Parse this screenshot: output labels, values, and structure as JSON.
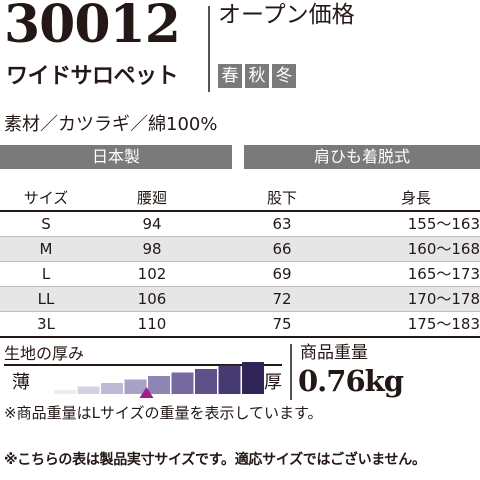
{
  "header": {
    "model_number": "30012",
    "product_name": "ワイドサロペット",
    "price_label": "オープン価格",
    "seasons": [
      "春",
      "秋",
      "冬"
    ]
  },
  "material": "素材／カツラギ／綿100%",
  "tags": {
    "origin": "日本製",
    "feature": "肩ひも着脱式"
  },
  "size_table": {
    "headers": [
      "サイズ",
      "腰廻",
      "股下",
      "身長"
    ],
    "rows": [
      [
        "S",
        "94",
        "63",
        "155〜163"
      ],
      [
        "M",
        "98",
        "66",
        "160〜168"
      ],
      [
        "L",
        "102",
        "69",
        "165〜173"
      ],
      [
        "LL",
        "106",
        "72",
        "170〜178"
      ],
      [
        "3L",
        "110",
        "75",
        "175〜183"
      ]
    ]
  },
  "thickness": {
    "label": "生地の厚み",
    "thin_label": "薄",
    "thick_label": "厚",
    "levels": 9,
    "selected_level": 4,
    "colors": [
      "#ebebf0",
      "#d2d2e0",
      "#bdbad4",
      "#a8a2c8",
      "#8f86b6",
      "#76699f",
      "#5e5089",
      "#463a73",
      "#2f2558"
    ],
    "marker_color": "#9c1f8c"
  },
  "weight": {
    "label": "商品重量",
    "value": "0.76kg"
  },
  "notes": {
    "weight_note": "※商品重量はLサイズの重量を表示しています。",
    "table_note": "※こちらの表は製品実寸サイズです。適応サイズではございません。"
  }
}
